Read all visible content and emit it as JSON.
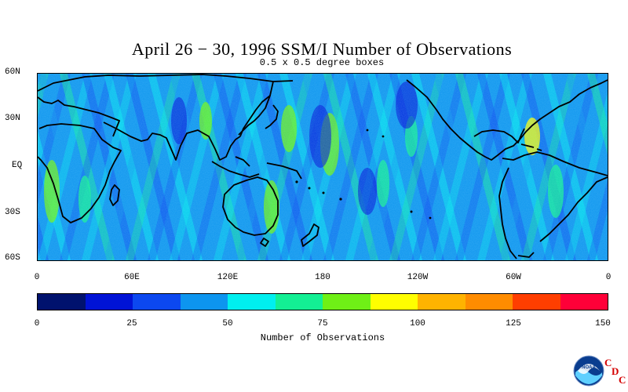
{
  "title": "April 26 − 30, 1996 SSM/I Number of Observations",
  "subtitle": "0.5 x 0.5 degree boxes",
  "latitude_labels": [
    "60N",
    "30N",
    "EQ",
    "30S",
    "60S"
  ],
  "longitude_labels": [
    "0",
    "60E",
    "120E",
    "180",
    "120W",
    "60W",
    "0"
  ],
  "colorbar": {
    "title": "Number of Observations",
    "tick_labels": [
      "0",
      "25",
      "50",
      "75",
      "100",
      "125",
      "150"
    ],
    "colors": [
      "#00126e",
      "#0013d6",
      "#0c48f0",
      "#0d95ef",
      "#00efef",
      "#13ef94",
      "#6ff016",
      "#fffe00",
      "#ffb300",
      "#ff8c00",
      "#ff3e00",
      "#ff0038"
    ]
  },
  "logo": {
    "text": "NOAA",
    "cdc_letters": [
      "C",
      "D",
      "C"
    ]
  },
  "chart_data": {
    "type": "heatmap",
    "title": "April 26 − 30, 1996 SSM/I Number of Observations",
    "subtitle": "0.5 x 0.5 degree boxes",
    "x_ticks": [
      "0",
      "60E",
      "120E",
      "180",
      "120W",
      "60W",
      "0"
    ],
    "y_ticks": [
      "60N",
      "30N",
      "EQ",
      "30S",
      "60S"
    ],
    "lon_range": [
      0,
      360
    ],
    "lat_range": [
      -60,
      60
    ],
    "value_range": [
      0,
      150
    ],
    "colorbar_label": "Number of Observations"
  }
}
